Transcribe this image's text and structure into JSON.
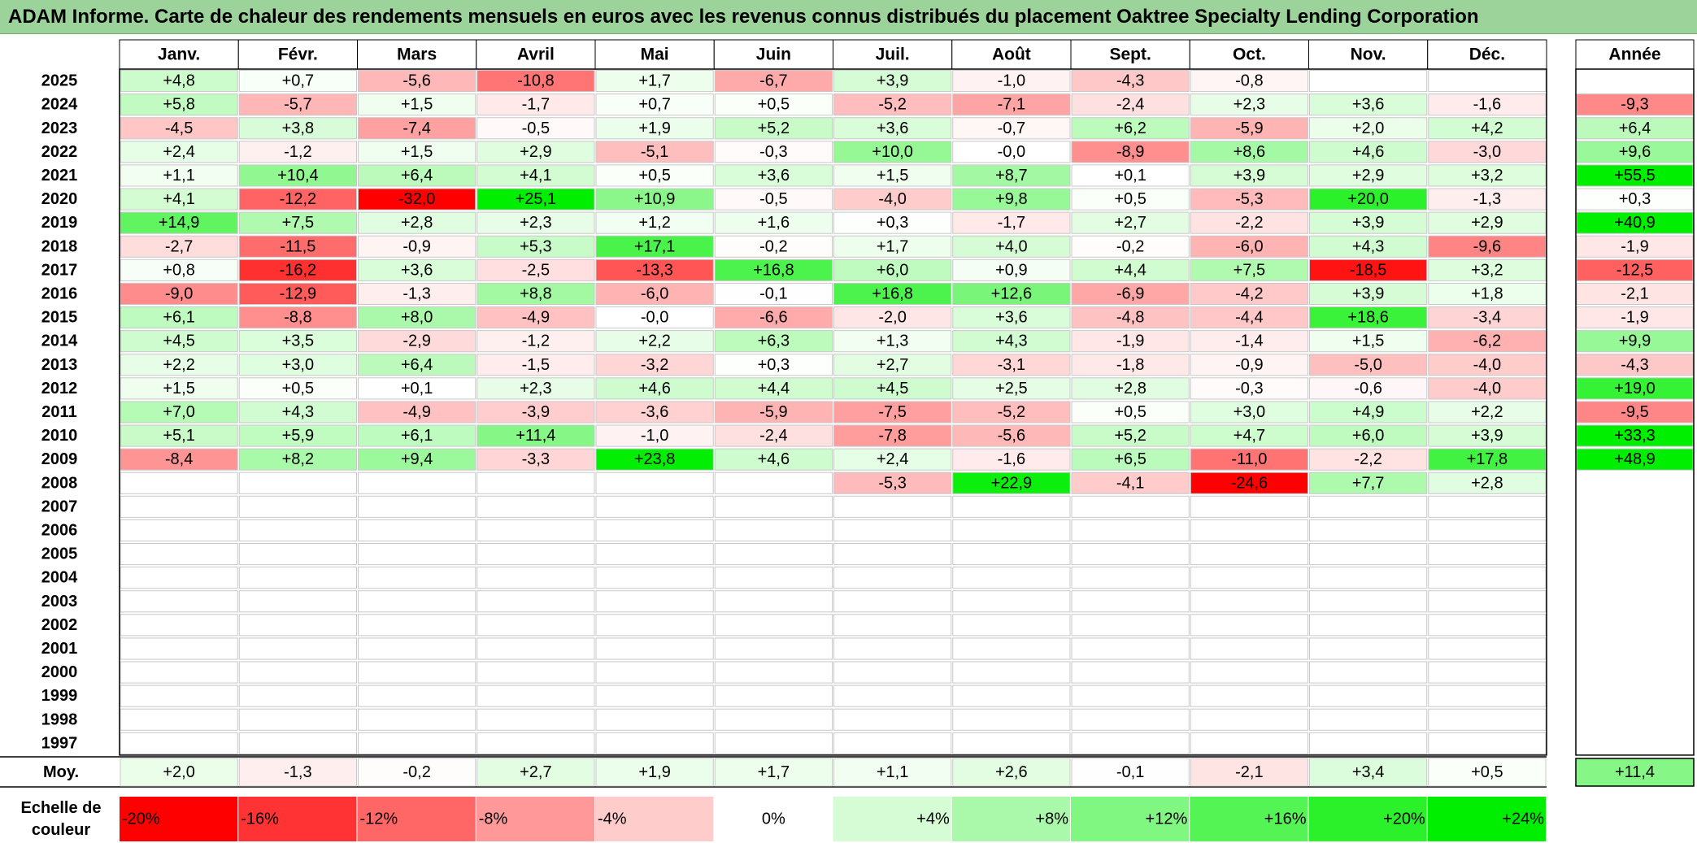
{
  "title": "ADAM Informe. Carte de chaleur des rendements mensuels en euros avec les revenus connus distribués du placement Oaktree Specialty Lending Corporation",
  "colors": {
    "title_bg": "#9bd39b",
    "negative_max": "#ff0000",
    "positive_max": "#00ee00",
    "neutral": "#ffffff"
  },
  "chart_data": {
    "type": "heatmap",
    "title": "ADAM Informe. Carte de chaleur des rendements mensuels en euros avec les revenus connus distribués du placement Oaktree Specialty Lending Corporation",
    "months": [
      "Janv.",
      "Févr.",
      "Mars",
      "Avril",
      "Mai",
      "Juin",
      "Juil.",
      "Août",
      "Sept.",
      "Oct.",
      "Nov.",
      "Déc."
    ],
    "year_column_label": "Année",
    "average_row_label": "Moy.",
    "rows": [
      {
        "year": "2025",
        "values": [
          4.8,
          0.7,
          -5.6,
          -10.8,
          1.7,
          -6.7,
          3.9,
          -1.0,
          -4.3,
          -0.8,
          null,
          null
        ],
        "annual": null
      },
      {
        "year": "2024",
        "values": [
          5.8,
          -5.7,
          1.5,
          -1.7,
          0.7,
          0.5,
          -5.2,
          -7.1,
          -2.4,
          2.3,
          3.6,
          -1.6
        ],
        "annual": -9.3
      },
      {
        "year": "2023",
        "values": [
          -4.5,
          3.8,
          -7.4,
          -0.5,
          1.9,
          5.2,
          3.6,
          -0.7,
          6.2,
          -5.9,
          2.0,
          4.2
        ],
        "annual": 6.4
      },
      {
        "year": "2022",
        "values": [
          2.4,
          -1.2,
          1.5,
          2.9,
          -5.1,
          -0.3,
          10.0,
          -0.0,
          -8.9,
          8.6,
          4.6,
          -3.0
        ],
        "annual": 9.6
      },
      {
        "year": "2021",
        "values": [
          1.1,
          10.4,
          6.4,
          4.1,
          0.5,
          3.6,
          1.5,
          8.7,
          0.1,
          3.9,
          2.9,
          3.2
        ],
        "annual": 55.5
      },
      {
        "year": "2020",
        "values": [
          4.1,
          -12.2,
          -32.0,
          25.1,
          10.9,
          -0.5,
          -4.0,
          9.8,
          0.5,
          -5.3,
          20.0,
          -1.3
        ],
        "annual": 0.3
      },
      {
        "year": "2019",
        "values": [
          14.9,
          7.5,
          2.8,
          2.3,
          1.2,
          1.6,
          0.3,
          -1.7,
          2.7,
          -2.2,
          3.9,
          2.9
        ],
        "annual": 40.9
      },
      {
        "year": "2018",
        "values": [
          -2.7,
          -11.5,
          -0.9,
          5.3,
          17.1,
          -0.2,
          1.7,
          4.0,
          -0.2,
          -6.0,
          4.3,
          -9.6
        ],
        "annual": -1.9
      },
      {
        "year": "2017",
        "values": [
          0.8,
          -16.2,
          3.6,
          -2.5,
          -13.3,
          16.8,
          6.0,
          0.9,
          4.4,
          7.5,
          -18.5,
          3.2
        ],
        "annual": -12.5
      },
      {
        "year": "2016",
        "values": [
          -9.0,
          -12.9,
          -1.3,
          8.8,
          -6.0,
          -0.1,
          16.8,
          12.6,
          -6.9,
          -4.2,
          3.9,
          1.8
        ],
        "annual": -2.1
      },
      {
        "year": "2015",
        "values": [
          6.1,
          -8.8,
          8.0,
          -4.9,
          -0.0,
          -6.6,
          -2.0,
          3.6,
          -4.8,
          -4.4,
          18.6,
          -3.4
        ],
        "annual": -1.9
      },
      {
        "year": "2014",
        "values": [
          4.5,
          3.5,
          -2.9,
          -1.2,
          2.2,
          6.3,
          1.3,
          4.3,
          -1.9,
          -1.4,
          1.5,
          -6.2
        ],
        "annual": 9.9
      },
      {
        "year": "2013",
        "values": [
          2.2,
          3.0,
          6.4,
          -1.5,
          -3.2,
          0.3,
          2.7,
          -3.1,
          -1.8,
          -0.9,
          -5.0,
          -4.0
        ],
        "annual": -4.3
      },
      {
        "year": "2012",
        "values": [
          1.5,
          0.5,
          0.1,
          2.3,
          4.6,
          4.4,
          4.5,
          2.5,
          2.8,
          -0.3,
          -0.6,
          -4.0
        ],
        "annual": 19.0
      },
      {
        "year": "2011",
        "values": [
          7.0,
          4.3,
          -4.9,
          -3.9,
          -3.6,
          -5.9,
          -7.5,
          -5.2,
          0.5,
          3.0,
          4.9,
          2.2
        ],
        "annual": -9.5
      },
      {
        "year": "2010",
        "values": [
          5.1,
          5.9,
          6.1,
          11.4,
          -1.0,
          -2.4,
          -7.8,
          -5.6,
          5.2,
          4.7,
          6.0,
          3.9
        ],
        "annual": 33.3
      },
      {
        "year": "2009",
        "values": [
          -8.4,
          8.2,
          9.4,
          -3.3,
          23.8,
          4.6,
          2.4,
          -1.6,
          6.5,
          -11.0,
          -2.2,
          17.8
        ],
        "annual": 48.9
      },
      {
        "year": "2008",
        "values": [
          null,
          null,
          null,
          null,
          null,
          null,
          -5.3,
          22.9,
          -4.1,
          -24.6,
          7.7,
          2.8
        ],
        "annual": null
      },
      {
        "year": "2007",
        "values": [
          null,
          null,
          null,
          null,
          null,
          null,
          null,
          null,
          null,
          null,
          null,
          null
        ],
        "annual": null
      },
      {
        "year": "2006",
        "values": [
          null,
          null,
          null,
          null,
          null,
          null,
          null,
          null,
          null,
          null,
          null,
          null
        ],
        "annual": null
      },
      {
        "year": "2005",
        "values": [
          null,
          null,
          null,
          null,
          null,
          null,
          null,
          null,
          null,
          null,
          null,
          null
        ],
        "annual": null
      },
      {
        "year": "2004",
        "values": [
          null,
          null,
          null,
          null,
          null,
          null,
          null,
          null,
          null,
          null,
          null,
          null
        ],
        "annual": null
      },
      {
        "year": "2003",
        "values": [
          null,
          null,
          null,
          null,
          null,
          null,
          null,
          null,
          null,
          null,
          null,
          null
        ],
        "annual": null
      },
      {
        "year": "2002",
        "values": [
          null,
          null,
          null,
          null,
          null,
          null,
          null,
          null,
          null,
          null,
          null,
          null
        ],
        "annual": null
      },
      {
        "year": "2001",
        "values": [
          null,
          null,
          null,
          null,
          null,
          null,
          null,
          null,
          null,
          null,
          null,
          null
        ],
        "annual": null
      },
      {
        "year": "2000",
        "values": [
          null,
          null,
          null,
          null,
          null,
          null,
          null,
          null,
          null,
          null,
          null,
          null
        ],
        "annual": null
      },
      {
        "year": "1999",
        "values": [
          null,
          null,
          null,
          null,
          null,
          null,
          null,
          null,
          null,
          null,
          null,
          null
        ],
        "annual": null
      },
      {
        "year": "1998",
        "values": [
          null,
          null,
          null,
          null,
          null,
          null,
          null,
          null,
          null,
          null,
          null,
          null
        ],
        "annual": null
      },
      {
        "year": "1997",
        "values": [
          null,
          null,
          null,
          null,
          null,
          null,
          null,
          null,
          null,
          null,
          null,
          null
        ],
        "annual": null
      }
    ],
    "average": {
      "values": [
        2.0,
        -1.3,
        -0.2,
        2.7,
        1.9,
        1.7,
        1.1,
        2.6,
        -0.1,
        -2.1,
        3.4,
        0.5
      ],
      "annual": 11.4
    },
    "color_scale": {
      "label_line1": "Echelle de",
      "label_line2": "couleur",
      "stops": [
        "-20%",
        "-16%",
        "-12%",
        "-8%",
        "-4%",
        "0%",
        "+4%",
        "+8%",
        "+12%",
        "+16%",
        "+20%",
        "+24%"
      ],
      "stop_values": [
        -20,
        -16,
        -12,
        -8,
        -4,
        0,
        4,
        8,
        12,
        16,
        20,
        24
      ]
    }
  }
}
